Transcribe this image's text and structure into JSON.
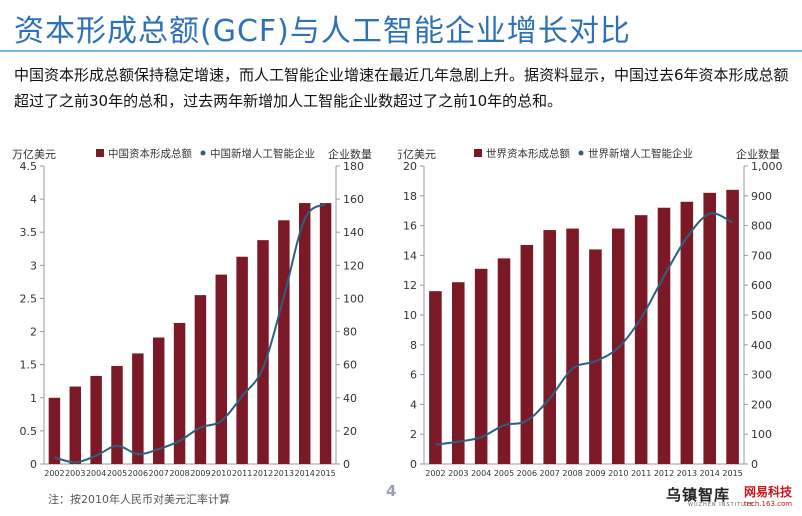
{
  "page_title": "资本形成总额(GCF)与人工智能企业增长对比",
  "description": "中国资本形成总额保持稳定增速，而人工智能企业增速在最近几年急剧上升。据资料显示，中国过去6年资本形成总额超过了之前30年的总和，过去两年新增加人工智能企业数超过了之前10年的总和。",
  "colors": {
    "title": "#2d72b8",
    "bar": "#7b1a26",
    "line": "#2c5f80"
  },
  "chart_data": [
    {
      "type": "bar",
      "title": "",
      "categories": [
        "2002",
        "2003",
        "2004",
        "2005",
        "2006",
        "2007",
        "2008",
        "2009",
        "2010",
        "2011",
        "2012",
        "2013",
        "2014",
        "2015"
      ],
      "series": [
        {
          "name": "中国资本形成总额",
          "type": "bar",
          "axis": "left",
          "values": [
            1.0,
            1.17,
            1.33,
            1.48,
            1.67,
            1.91,
            2.13,
            2.55,
            2.86,
            3.13,
            3.38,
            3.68,
            3.94,
            3.94
          ]
        },
        {
          "name": "中国新增人工智能企业",
          "type": "line",
          "axis": "right",
          "values": [
            4,
            1,
            5,
            11,
            6,
            9,
            14,
            22,
            26,
            41,
            58,
            101,
            148,
            157
          ]
        }
      ],
      "ylabel_left": "万亿美元",
      "ylabel_right": "企业数量",
      "ylim_left": [
        0,
        4.5
      ],
      "yticks_left": [
        "0",
        "0.5",
        "1",
        "1.5",
        "2",
        "2.5",
        "3",
        "3.5",
        "4",
        "4.5"
      ],
      "ylim_right": [
        0,
        180
      ],
      "yticks_right": [
        "0",
        "20",
        "40",
        "60",
        "80",
        "100",
        "120",
        "140",
        "160",
        "180"
      ],
      "legend_position": "top",
      "grid": false
    },
    {
      "type": "bar",
      "title": "",
      "categories": [
        "2002",
        "2003",
        "2004",
        "2005",
        "2006",
        "2007",
        "2008",
        "2009",
        "2010",
        "2011",
        "2012",
        "2013",
        "2014",
        "2015"
      ],
      "series": [
        {
          "name": "世界资本形成总额",
          "type": "bar",
          "axis": "left",
          "values": [
            11.6,
            12.2,
            13.1,
            13.8,
            14.7,
            15.7,
            15.8,
            14.4,
            15.8,
            16.7,
            17.2,
            17.6,
            18.2,
            18.4
          ]
        },
        {
          "name": "世界新增人工智能企业",
          "type": "line",
          "axis": "right",
          "values": [
            65,
            75,
            90,
            130,
            145,
            220,
            320,
            345,
            390,
            490,
            630,
            760,
            840,
            810
          ]
        }
      ],
      "ylabel_left": "万亿美元",
      "ylabel_right": "企业数量",
      "ylim_left": [
        0,
        20
      ],
      "yticks_left": [
        "0",
        "2",
        "4",
        "6",
        "8",
        "10",
        "12",
        "14",
        "16",
        "18",
        "20"
      ],
      "ylim_right": [
        0,
        1000
      ],
      "yticks_right": [
        "0",
        "100",
        "200",
        "300",
        "400",
        "500",
        "600",
        "700",
        "800",
        "900",
        "1,000"
      ],
      "legend_position": "top",
      "grid": false
    }
  ],
  "footnote": "注：按2010年人民币对美元汇率计算",
  "page_number": "4",
  "logo": {
    "name": "乌镇智库",
    "subtitle": "WUZHEN INSTITUTE"
  },
  "logo2": {
    "name": "网易科技",
    "subtitle": "tech.163.com"
  }
}
